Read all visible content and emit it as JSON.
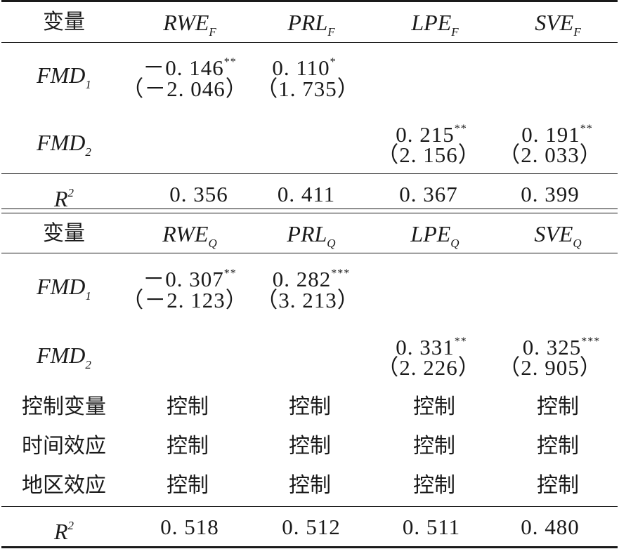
{
  "panel_f": {
    "header": {
      "var": "变量",
      "c1": {
        "base": "RWE",
        "sub": "F"
      },
      "c2": {
        "base": "PRL",
        "sub": "F"
      },
      "c3": {
        "base": "LPE",
        "sub": "F"
      },
      "c4": {
        "base": "SVE",
        "sub": "F"
      }
    },
    "fmd1": {
      "base": "FMD",
      "sub": "1",
      "c1_coef": "－0. 146",
      "c1_star": "**",
      "c1_t": "（－2. 046）",
      "c2_coef": "0. 110",
      "c2_star": "*",
      "c2_t": "（1. 735）"
    },
    "fmd2": {
      "base": "FMD",
      "sub": "2",
      "c3_coef": "0. 215",
      "c3_star": "**",
      "c3_t": "（2. 156）",
      "c4_coef": "0. 191",
      "c4_star": "**",
      "c4_t": "（2. 033）"
    },
    "r2": {
      "base": "R",
      "sup": "2",
      "c1": "0. 356",
      "c2": "0. 411",
      "c3": "0. 367",
      "c4": "0. 399"
    }
  },
  "panel_q": {
    "header": {
      "var": "变量",
      "c1": {
        "base": "RWE",
        "sub": "Q"
      },
      "c2": {
        "base": "PRL",
        "sub": "Q"
      },
      "c3": {
        "base": "LPE",
        "sub": "Q"
      },
      "c4": {
        "base": "SVE",
        "sub": "Q"
      }
    },
    "fmd1": {
      "base": "FMD",
      "sub": "1",
      "c1_coef": "－0. 307",
      "c1_star": "**",
      "c1_t": "（－2. 123）",
      "c2_coef": "0. 282",
      "c2_star": "***",
      "c2_t": "（3. 213）"
    },
    "fmd2": {
      "base": "FMD",
      "sub": "2",
      "c3_coef": "0. 331",
      "c3_star": "**",
      "c3_t": "（2. 226）",
      "c4_coef": "0. 325",
      "c4_star": "***",
      "c4_t": "（2. 905）"
    },
    "controls": [
      {
        "label": "控制变量",
        "c1": "控制",
        "c2": "控制",
        "c3": "控制",
        "c4": "控制"
      },
      {
        "label": "时间效应",
        "c1": "控制",
        "c2": "控制",
        "c3": "控制",
        "c4": "控制"
      },
      {
        "label": "地区效应",
        "c1": "控制",
        "c2": "控制",
        "c3": "控制",
        "c4": "控制"
      }
    ],
    "r2": {
      "base": "R",
      "sup": "2",
      "c1": "0. 518",
      "c2": "0. 512",
      "c3": "0. 511",
      "c4": "0. 480"
    }
  }
}
